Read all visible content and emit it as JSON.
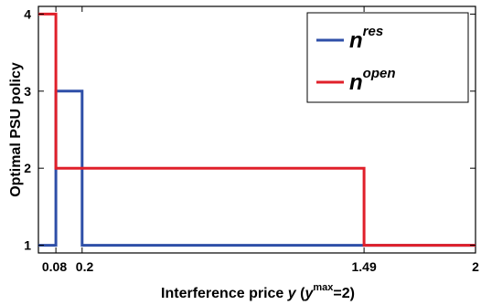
{
  "chart_data": {
    "type": "line",
    "step": true,
    "xlim": [
      0,
      2
    ],
    "ylim": [
      0.9,
      4.1
    ],
    "x_ticks": [
      0.08,
      0.2,
      1.49,
      2
    ],
    "x_tick_labels": [
      "0.08",
      "0.2",
      "1.49",
      "2"
    ],
    "y_ticks": [
      1,
      2,
      3,
      4
    ],
    "y_tick_labels": [
      "1",
      "2",
      "3",
      "4"
    ],
    "xlabel": {
      "prefix": "Interference price ",
      "var": "y",
      "open": " (",
      "ysym": "y",
      "sup": "max",
      "suffix": "=2)"
    },
    "ylabel": "Optimal PSU policy",
    "legend_position": "top-right",
    "series": [
      {
        "name": "n",
        "name_sup": "res",
        "color": "#2e4fa8",
        "points": [
          [
            0,
            1
          ],
          [
            0.08,
            1
          ],
          [
            0.08,
            3
          ],
          [
            0.2,
            3
          ],
          [
            0.2,
            1
          ],
          [
            2,
            1
          ]
        ]
      },
      {
        "name": "n",
        "name_sup": "open",
        "color": "#e0202a",
        "points": [
          [
            0,
            4
          ],
          [
            0.08,
            4
          ],
          [
            0.08,
            2
          ],
          [
            1.49,
            2
          ],
          [
            1.49,
            1
          ],
          [
            2,
            1
          ]
        ]
      }
    ]
  }
}
